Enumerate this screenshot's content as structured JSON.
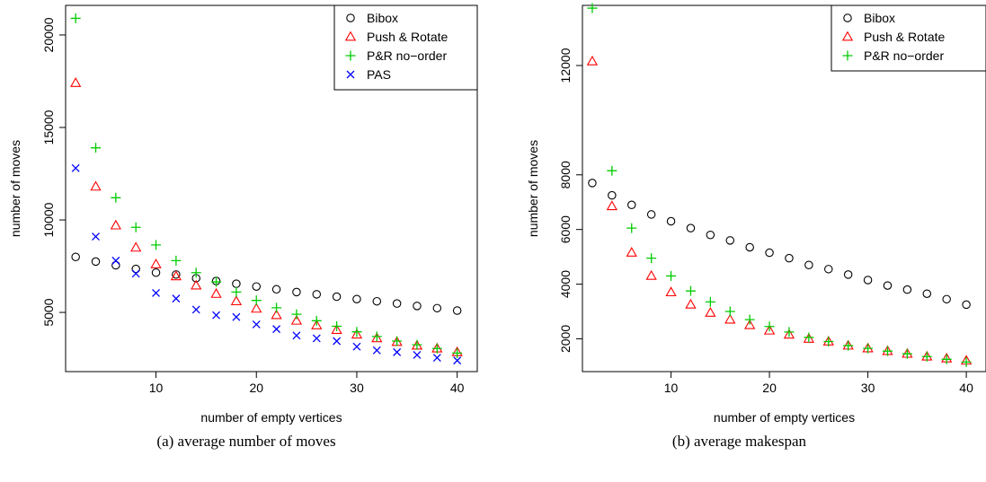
{
  "captions": [
    "(a)  average number of moves",
    "(b)  average makespan"
  ],
  "chart_data": [
    {
      "type": "scatter",
      "xlabel": "number of empty vertices",
      "ylabel": "number of moves",
      "xlim": [
        1,
        42
      ],
      "ylim": [
        1800,
        21600
      ],
      "xticks": [
        10,
        20,
        30,
        40
      ],
      "yticks": [
        5000,
        10000,
        15000,
        20000
      ],
      "grid": false,
      "legend_position": "top-right",
      "x": [
        2,
        4,
        6,
        8,
        10,
        12,
        14,
        16,
        18,
        20,
        22,
        24,
        26,
        28,
        30,
        32,
        34,
        36,
        38,
        40
      ],
      "series": [
        {
          "name": "Bibox",
          "marker": "circle",
          "color": "#000000",
          "values": [
            8000,
            7750,
            7550,
            7350,
            7150,
            7050,
            6850,
            6700,
            6550,
            6400,
            6250,
            6100,
            5980,
            5850,
            5720,
            5600,
            5480,
            5350,
            5230,
            5100
          ]
        },
        {
          "name": "Push & Rotate",
          "marker": "triangle",
          "color": "#ff0000",
          "values": [
            17400,
            11800,
            9700,
            8500,
            7600,
            6950,
            6450,
            6000,
            5600,
            5200,
            4850,
            4550,
            4300,
            4050,
            3800,
            3600,
            3400,
            3200,
            3050,
            2850
          ]
        },
        {
          "name": "P&R no−order",
          "marker": "plus",
          "color": "#00cc00",
          "values": [
            20900,
            13900,
            11200,
            9600,
            8650,
            7800,
            7150,
            6650,
            6100,
            5650,
            5250,
            4900,
            4550,
            4250,
            3950,
            3700,
            3450,
            3250,
            3050,
            2800
          ]
        },
        {
          "name": "PAS",
          "marker": "cross",
          "color": "#0000ff",
          "values": [
            12800,
            9100,
            7800,
            7100,
            6050,
            5750,
            5150,
            4850,
            4750,
            4350,
            4100,
            3750,
            3600,
            3450,
            3150,
            2950,
            2850,
            2700,
            2550,
            2400
          ]
        }
      ]
    },
    {
      "type": "scatter",
      "xlabel": "number of empty vertices",
      "ylabel": "number of moves",
      "xlim": [
        1,
        42
      ],
      "ylim": [
        800,
        14200
      ],
      "xticks": [
        10,
        20,
        30,
        40
      ],
      "yticks": [
        2000,
        4000,
        6000,
        8000,
        12000
      ],
      "grid": false,
      "legend_position": "top-right",
      "x": [
        2,
        4,
        6,
        8,
        10,
        12,
        14,
        16,
        18,
        20,
        22,
        24,
        26,
        28,
        30,
        32,
        34,
        36,
        38,
        40
      ],
      "series": [
        {
          "name": "Bibox",
          "marker": "circle",
          "color": "#000000",
          "values": [
            7700,
            7250,
            6900,
            6550,
            6300,
            6050,
            5800,
            5600,
            5350,
            5150,
            4950,
            4700,
            4550,
            4350,
            4150,
            3950,
            3800,
            3650,
            3450,
            3250
          ]
        },
        {
          "name": "Push & Rotate",
          "marker": "triangle",
          "color": "#ff0000",
          "values": [
            12150,
            6850,
            5150,
            4300,
            3700,
            3250,
            2950,
            2700,
            2500,
            2300,
            2150,
            2000,
            1900,
            1750,
            1650,
            1550,
            1450,
            1350,
            1280,
            1200
          ]
        },
        {
          "name": "P&R no−order",
          "marker": "plus",
          "color": "#00cc00",
          "values": [
            14100,
            8150,
            6050,
            4950,
            4300,
            3750,
            3350,
            3000,
            2700,
            2450,
            2250,
            2050,
            1900,
            1750,
            1650,
            1550,
            1450,
            1350,
            1250,
            1150
          ]
        }
      ]
    }
  ]
}
